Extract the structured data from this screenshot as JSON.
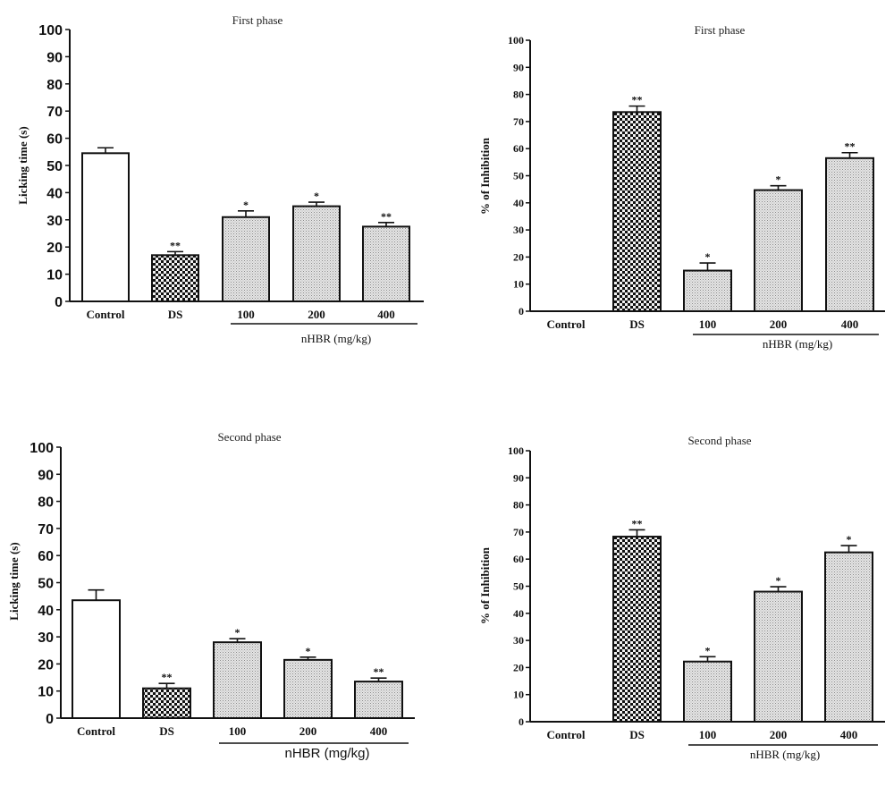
{
  "chart_data": [
    {
      "type": "bar",
      "title": "First phase",
      "xlabel": "nHBR (mg/kg)",
      "ylabel": "Licking time (s)",
      "ylim": [
        0,
        100
      ],
      "yticks": [
        0,
        10,
        20,
        30,
        40,
        50,
        60,
        70,
        80,
        90,
        100
      ],
      "categories": [
        "Control",
        "DS",
        "100",
        "200",
        "400"
      ],
      "group_label_spans": [
        "100",
        "200",
        "400"
      ],
      "values": [
        54.5,
        17,
        31,
        35,
        27.5
      ],
      "errors": [
        2,
        1.3,
        2.3,
        1.5,
        1.5
      ],
      "significance": [
        "",
        "**",
        "*",
        "*",
        "**"
      ],
      "patterns": [
        "white",
        "checker",
        "dotted",
        "dotted",
        "dotted"
      ],
      "grid": false
    },
    {
      "type": "bar",
      "title": "First phase",
      "xlabel": "nHBR (mg/kg)",
      "ylabel": "% of Inhibition",
      "ylim": [
        0,
        100
      ],
      "yticks": [
        0,
        10,
        20,
        30,
        40,
        50,
        60,
        70,
        80,
        90,
        100
      ],
      "categories": [
        "Control",
        "DS",
        "100",
        "200",
        "400"
      ],
      "group_label_spans": [
        "100",
        "200",
        "400"
      ],
      "values": [
        0,
        73.5,
        15,
        44.7,
        56.5
      ],
      "errors": [
        0,
        2.2,
        2.8,
        1.6,
        2
      ],
      "significance": [
        "",
        "**",
        "*",
        "*",
        "**"
      ],
      "patterns": [
        "white",
        "checker",
        "dotted",
        "dotted",
        "dotted"
      ],
      "grid": false
    },
    {
      "type": "bar",
      "title": "Second phase",
      "xlabel": "nHBR (mg/kg)",
      "ylabel": "Licking time (s)",
      "ylim": [
        0,
        100
      ],
      "yticks": [
        0,
        10,
        20,
        30,
        40,
        50,
        60,
        70,
        80,
        90,
        100
      ],
      "categories": [
        "Control",
        "DS",
        "100",
        "200",
        "400"
      ],
      "group_label_spans": [
        "100",
        "200",
        "400"
      ],
      "values": [
        43.5,
        11,
        28,
        21.5,
        13.5
      ],
      "errors": [
        3.8,
        1.8,
        1.3,
        1,
        1.3
      ],
      "significance": [
        "",
        "**",
        "*",
        "*",
        "**"
      ],
      "patterns": [
        "white",
        "checker",
        "dotted",
        "dotted",
        "dotted"
      ],
      "grid": false
    },
    {
      "type": "bar",
      "title": "Second phase",
      "xlabel": "nHBR (mg/kg)",
      "ylabel": "% of Inhibition",
      "ylim": [
        0,
        100
      ],
      "yticks": [
        0,
        10,
        20,
        30,
        40,
        50,
        60,
        70,
        80,
        90,
        100
      ],
      "categories": [
        "Control",
        "DS",
        "100",
        "200",
        "400"
      ],
      "group_label_spans": [
        "100",
        "200",
        "400"
      ],
      "values": [
        0,
        68.3,
        22.2,
        48,
        62.5
      ],
      "errors": [
        0,
        2.5,
        1.8,
        1.8,
        2.5
      ],
      "significance": [
        "",
        "**",
        "*",
        "*",
        "*"
      ],
      "patterns": [
        "white",
        "checker",
        "dotted",
        "dotted",
        "dotted"
      ],
      "grid": false
    }
  ]
}
